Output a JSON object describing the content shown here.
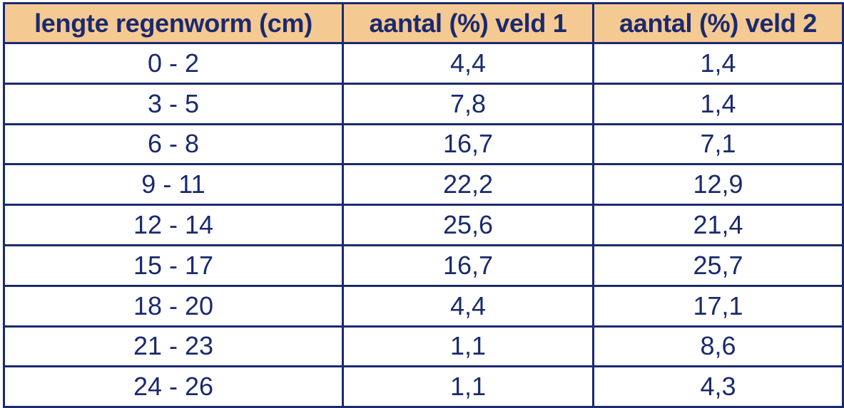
{
  "colors": {
    "header_background": "#f5c992",
    "border": "#1a2a6e",
    "text": "#1a2a6e",
    "cell_background": "#ffffff"
  },
  "chart_data": {
    "type": "table",
    "columns": [
      "lengte regenworm (cm)",
      "aantal (%) veld 1",
      "aantal (%) veld 2"
    ],
    "rows": [
      [
        "0 - 2",
        "4,4",
        "1,4"
      ],
      [
        "3 - 5",
        "7,8",
        "1,4"
      ],
      [
        "6 - 8",
        "16,7",
        "7,1"
      ],
      [
        "9 - 11",
        "22,2",
        "12,9"
      ],
      [
        "12 - 14",
        "25,6",
        "21,4"
      ],
      [
        "15 - 17",
        "16,7",
        "25,7"
      ],
      [
        "18 - 20",
        "4,4",
        "17,1"
      ],
      [
        "21 - 23",
        "1,1",
        "8,6"
      ],
      [
        "24 - 26",
        "1,1",
        "4,3"
      ]
    ]
  }
}
